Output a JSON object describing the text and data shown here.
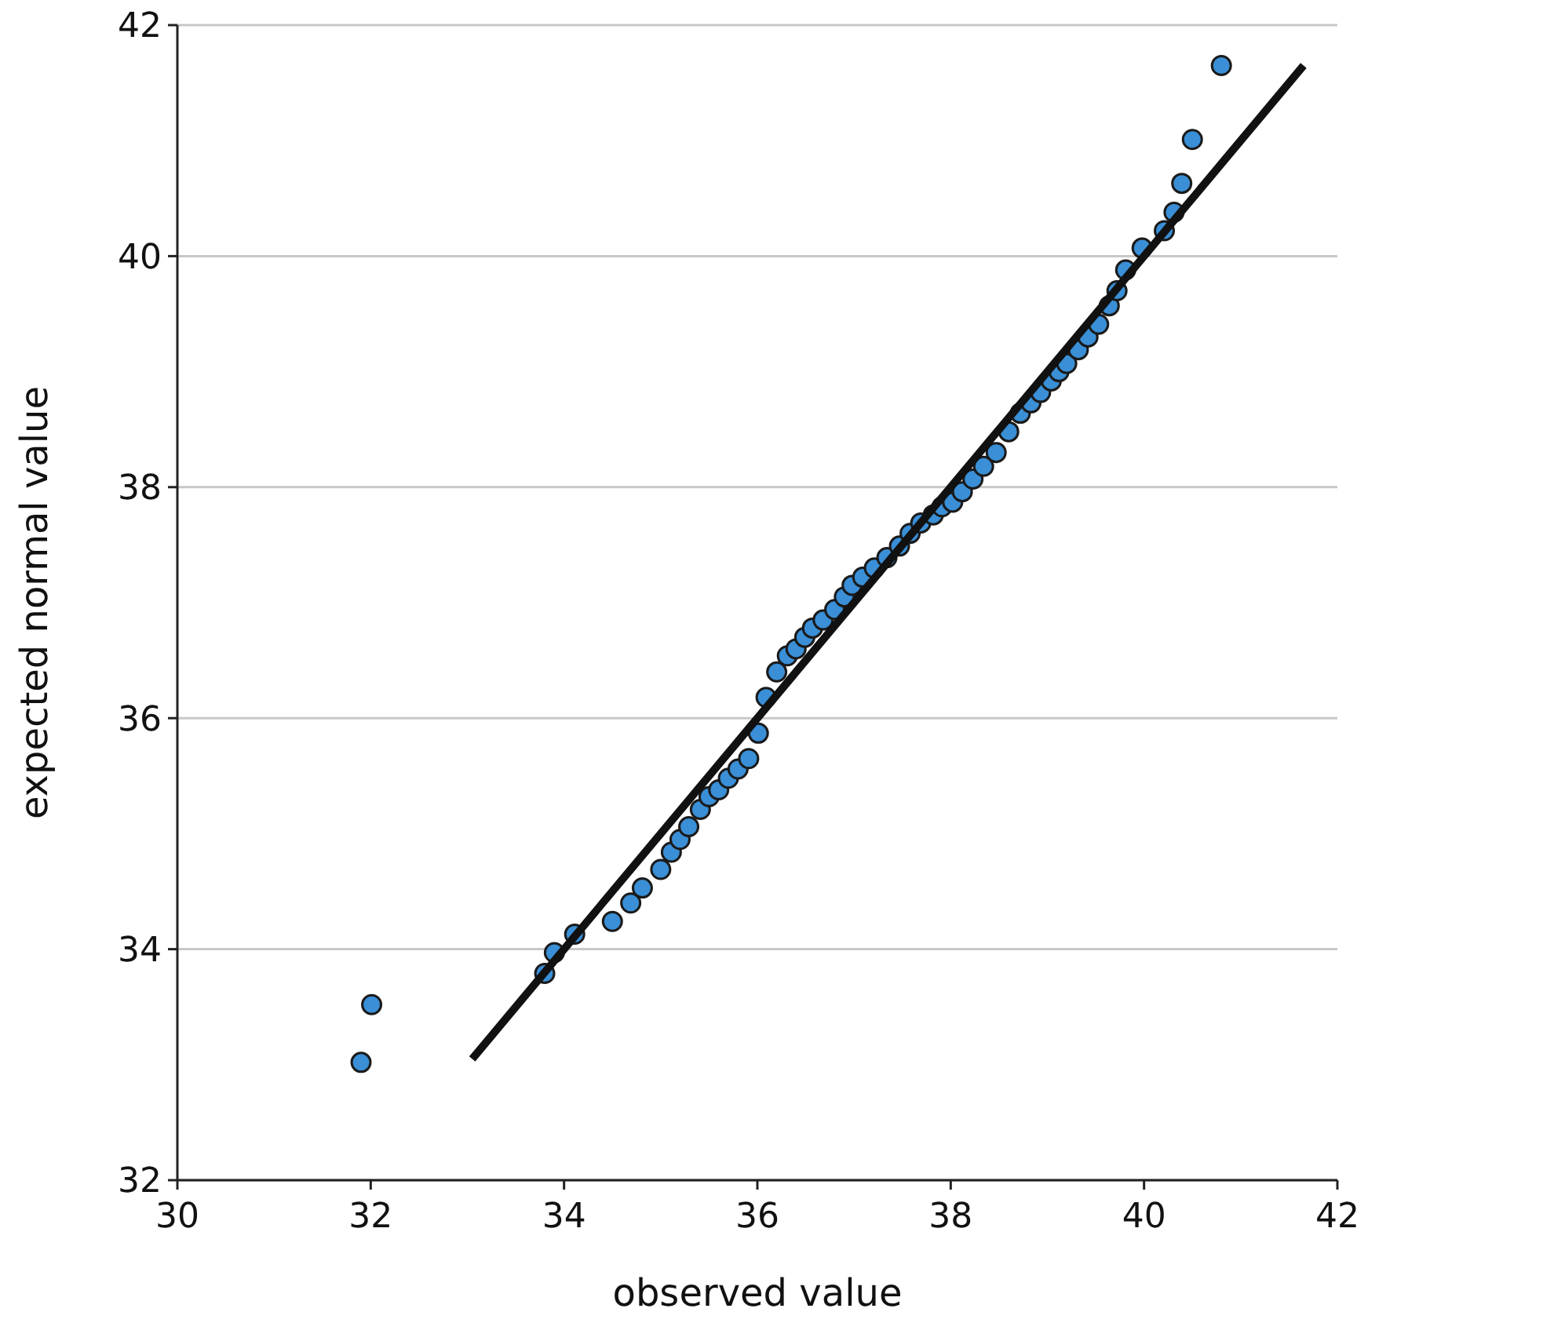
{
  "chart_data": {
    "type": "scatter",
    "xlabel": "observed value",
    "ylabel": "expected normal value",
    "xlim": [
      30,
      42
    ],
    "ylim": [
      32,
      42
    ],
    "xticks": [
      30,
      32,
      34,
      36,
      38,
      40,
      42
    ],
    "yticks": [
      32,
      34,
      36,
      38,
      40,
      42
    ],
    "grid": "y",
    "marker": "circle",
    "series": [
      {
        "type": "scatter",
        "color": "#3a8fd6",
        "x": [
          31.9,
          32.01,
          33.8,
          33.9,
          34.11,
          34.5,
          34.69,
          34.81,
          35.0,
          35.11,
          35.2,
          35.29,
          35.41,
          35.5,
          35.6,
          35.7,
          35.8,
          35.91,
          36.01,
          36.09,
          36.2,
          36.31,
          36.4,
          36.49,
          36.57,
          36.68,
          36.8,
          36.9,
          36.98,
          37.09,
          37.21,
          37.34,
          37.47,
          37.58,
          37.69,
          37.82,
          37.91,
          38.02,
          38.12,
          38.23,
          38.34,
          38.47,
          38.6,
          38.72,
          38.83,
          38.93,
          39.04,
          39.12,
          39.2,
          39.32,
          39.42,
          39.53,
          39.64,
          39.72,
          39.81,
          39.98,
          40.21,
          40.31,
          40.39,
          40.5,
          40.8
        ],
        "values": [
          33.02,
          33.52,
          33.79,
          33.97,
          34.13,
          34.24,
          34.4,
          34.53,
          34.69,
          34.84,
          34.95,
          35.06,
          35.21,
          35.32,
          35.38,
          35.48,
          35.56,
          35.65,
          35.87,
          36.18,
          36.4,
          36.54,
          36.6,
          36.7,
          36.78,
          36.85,
          36.94,
          37.05,
          37.15,
          37.22,
          37.3,
          37.39,
          37.49,
          37.6,
          37.69,
          37.76,
          37.83,
          37.87,
          37.96,
          38.07,
          38.18,
          38.3,
          38.48,
          38.64,
          38.73,
          38.82,
          38.92,
          39.0,
          39.07,
          39.19,
          39.3,
          39.41,
          39.57,
          39.7,
          39.88,
          40.07,
          40.22,
          40.38,
          40.63,
          41.01,
          41.65
        ]
      },
      {
        "type": "line",
        "color": "#111111",
        "line_style": "solid",
        "marker": "none",
        "x": [
          33.05,
          41.65
        ],
        "values": [
          33.05,
          41.65
        ]
      }
    ]
  }
}
